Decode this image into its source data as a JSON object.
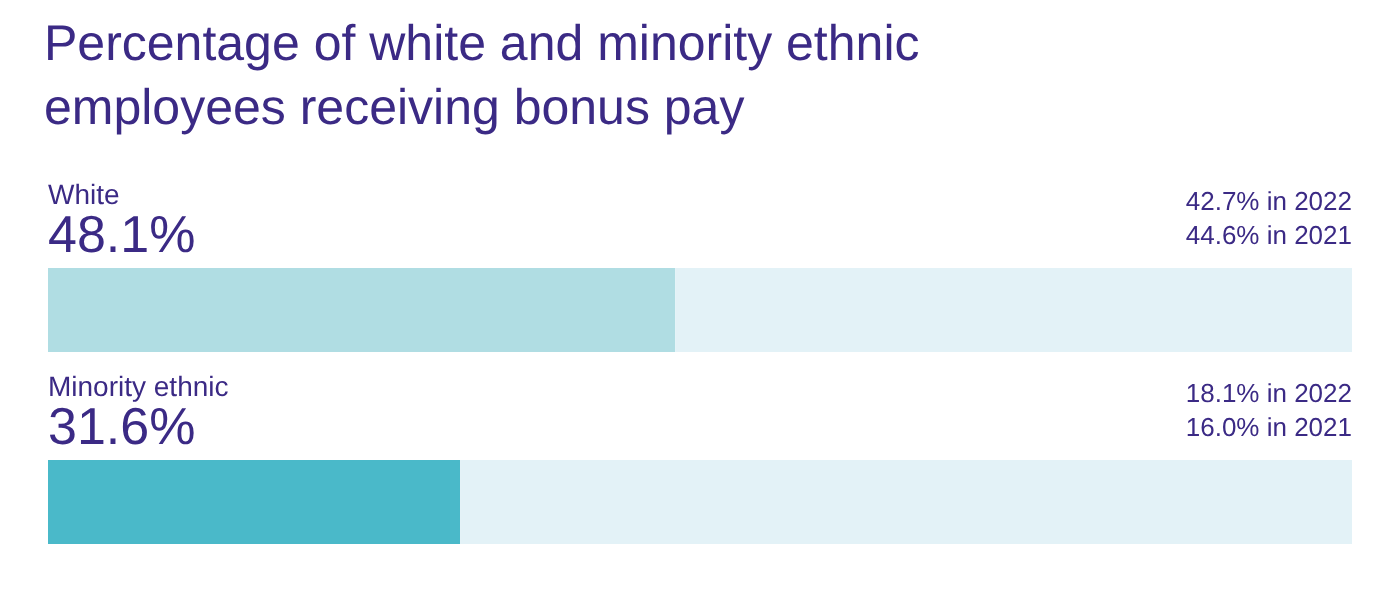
{
  "chart_data": {
    "type": "bar",
    "orientation": "horizontal",
    "stacked": true,
    "title": "Percentage of white and minority ethnic\nemployees receiving bonus pay",
    "categories": [
      "White",
      "Minority ethnic"
    ],
    "series": [
      {
        "colors": [
          "#b0dde3",
          "#4ab9c9"
        ],
        "values": [
          48.1,
          31.6
        ],
        "value_labels": [
          "48.1%",
          "31.6%"
        ]
      },
      {
        "color": "#e3f2f7",
        "values": [
          51.9,
          68.4
        ]
      }
    ],
    "xlim": [
      0,
      100
    ],
    "annotations": [
      "42.7% in 2022",
      "44.6% in 2021",
      "18.1% in 2022",
      "16.0% in 2021"
    ]
  }
}
